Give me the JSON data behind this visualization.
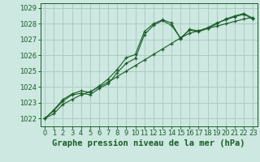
{
  "title": "",
  "xlabel": "Graphe pression niveau de la mer (hPa)",
  "ylabel": "",
  "bg_color": "#cce8e0",
  "grid_color": "#aaccc4",
  "line_color": "#1a5c28",
  "xlim": [
    -0.5,
    23.5
  ],
  "ylim": [
    1021.5,
    1029.3
  ],
  "xticks": [
    0,
    1,
    2,
    3,
    4,
    5,
    6,
    7,
    8,
    9,
    10,
    11,
    12,
    13,
    14,
    15,
    16,
    17,
    18,
    19,
    20,
    21,
    22,
    23
  ],
  "yticks": [
    1022,
    1023,
    1024,
    1025,
    1026,
    1027,
    1028,
    1029
  ],
  "line1_x": [
    0,
    1,
    2,
    3,
    4,
    5,
    6,
    7,
    8,
    9,
    10,
    11,
    12,
    13,
    14,
    15,
    16,
    17,
    18,
    19,
    20,
    21,
    22,
    23
  ],
  "line1_y": [
    1022.0,
    1022.5,
    1023.1,
    1023.5,
    1023.6,
    1023.5,
    1023.9,
    1024.2,
    1024.9,
    1025.5,
    1025.8,
    1027.3,
    1027.9,
    1028.2,
    1027.9,
    1027.1,
    1027.6,
    1027.5,
    1027.7,
    1028.0,
    1028.3,
    1028.5,
    1028.65,
    1028.35
  ],
  "line2_x": [
    0,
    1,
    2,
    3,
    4,
    5,
    6,
    7,
    8,
    9,
    10,
    11,
    12,
    13,
    14,
    15,
    16,
    17,
    18,
    19,
    20,
    21,
    22,
    23
  ],
  "line2_y": [
    1022.0,
    1022.55,
    1023.2,
    1023.55,
    1023.75,
    1023.65,
    1024.05,
    1024.5,
    1025.1,
    1025.85,
    1026.05,
    1027.5,
    1028.0,
    1028.25,
    1028.05,
    1027.05,
    1027.65,
    1027.55,
    1027.75,
    1028.05,
    1028.25,
    1028.45,
    1028.6,
    1028.3
  ],
  "line3_x": [
    0,
    1,
    2,
    3,
    4,
    5,
    6,
    7,
    8,
    9,
    10,
    11,
    12,
    13,
    14,
    15,
    16,
    17,
    18,
    19,
    20,
    21,
    22,
    23
  ],
  "line3_y": [
    1022.0,
    1022.3,
    1022.9,
    1023.2,
    1023.5,
    1023.7,
    1024.0,
    1024.3,
    1024.65,
    1025.0,
    1025.35,
    1025.7,
    1026.05,
    1026.4,
    1026.75,
    1027.1,
    1027.4,
    1027.55,
    1027.7,
    1027.85,
    1028.0,
    1028.15,
    1028.3,
    1028.4
  ],
  "xlabel_fontsize": 7.5,
  "tick_fontsize": 6.0
}
